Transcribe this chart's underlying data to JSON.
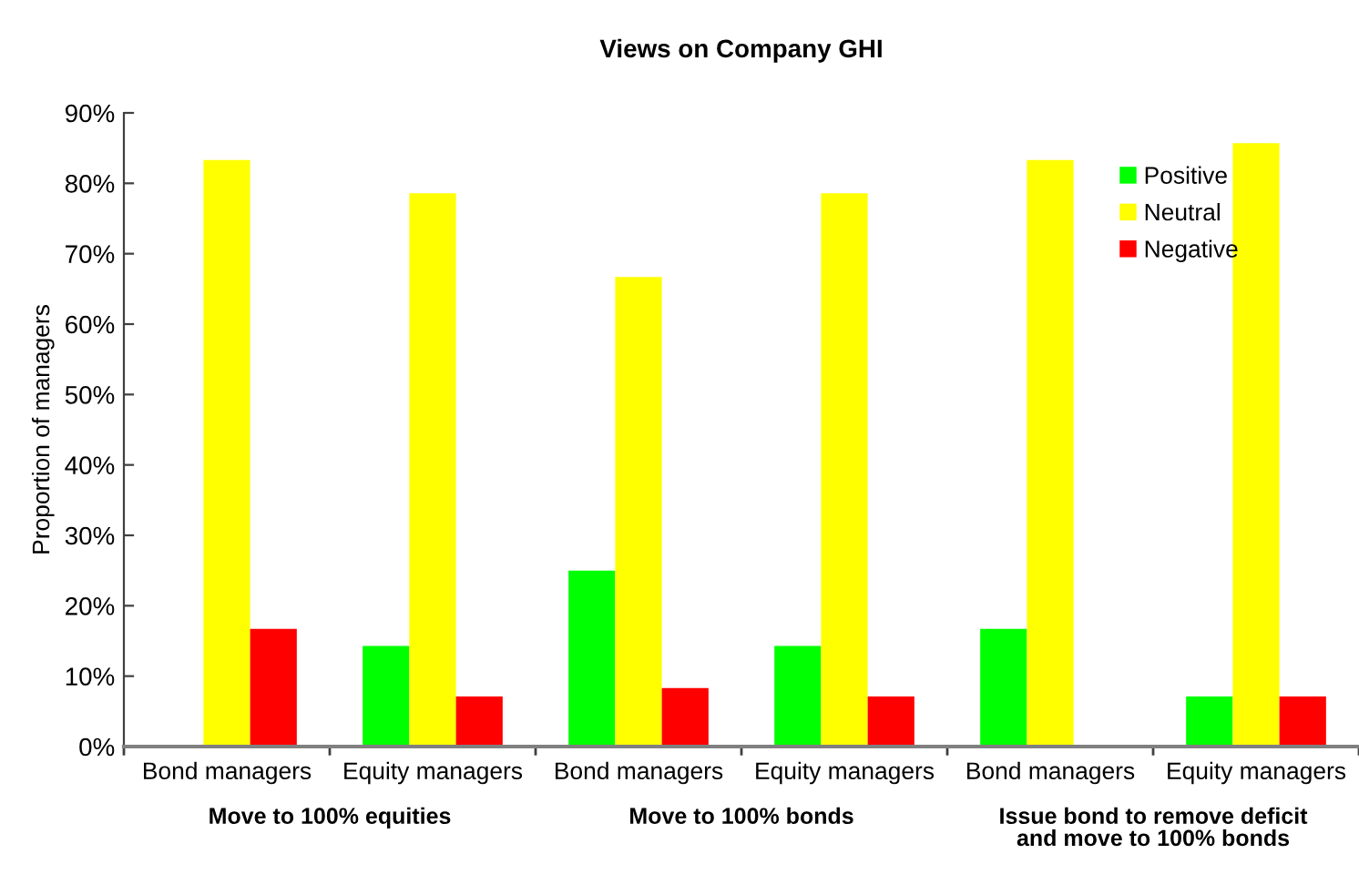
{
  "chart_data": {
    "type": "bar",
    "title": "Views on Company GHI",
    "ylabel": "Proportion of managers",
    "categories": [
      "Bond managers",
      "Equity managers",
      "Bond managers",
      "Equity managers",
      "Bond managers",
      "Equity managers"
    ],
    "series": [
      {
        "name": "Positive",
        "color": "#00ff00",
        "values": [
          0,
          14.3,
          25,
          14.3,
          16.7,
          7.1
        ]
      },
      {
        "name": "Neutral",
        "color": "#ffff00",
        "values": [
          83.3,
          78.6,
          66.7,
          78.6,
          83.3,
          85.7
        ]
      },
      {
        "name": "Negative",
        "color": "#ff0000",
        "values": [
          16.7,
          7.1,
          8.3,
          7.1,
          0,
          7.1
        ]
      }
    ],
    "annotations": [
      "Move to 100% equities",
      "Move to 100% bonds",
      "Issue bond to remove deficit\nand move to 100% bonds"
    ],
    "ylim": [
      0,
      90
    ],
    "yticks": [
      {
        "value": 0,
        "label": "0%"
      },
      {
        "value": 10,
        "label": "10%"
      },
      {
        "value": 20,
        "label": "20%"
      },
      {
        "value": 30,
        "label": "30%"
      },
      {
        "value": 40,
        "label": "40%"
      },
      {
        "value": 50,
        "label": "50%"
      },
      {
        "value": 60,
        "label": "60%"
      },
      {
        "value": 70,
        "label": "70%"
      },
      {
        "value": 80,
        "label": "80%"
      },
      {
        "value": 90,
        "label": "90%"
      }
    ],
    "grid": false,
    "legend": "top right"
  }
}
